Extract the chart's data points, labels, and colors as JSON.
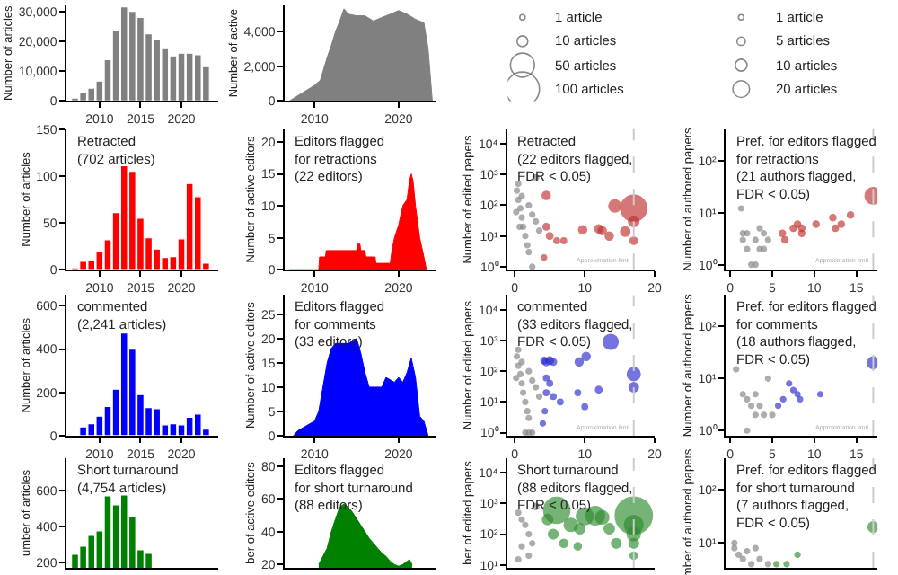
{
  "chart_data": [
    {
      "type": "bar",
      "ylabel": "Number of articles",
      "x": [
        2007,
        2008,
        2009,
        2010,
        2011,
        2012,
        2013,
        2014,
        2015,
        2016,
        2017,
        2018,
        2019,
        2020,
        2021,
        2022,
        2023
      ],
      "values": [
        1000,
        2700,
        4300,
        6700,
        13800,
        23500,
        31500,
        30000,
        28000,
        22500,
        20500,
        17800,
        15100,
        16000,
        16000,
        15500,
        11500
      ],
      "color": "#808080",
      "xlim": [
        2006,
        2024.5
      ],
      "xticks": [
        2010,
        2015,
        2020
      ],
      "ylim": [
        0,
        32000
      ],
      "yticks": [
        0,
        {
          "value": 10000,
          "label": "10,000"
        },
        {
          "value": 20000,
          "label": "20,000"
        },
        {
          "value": 30000,
          "label": "30,000"
        }
      ]
    },
    {
      "type": "area",
      "ylabel": "Number of active",
      "x": [
        2007,
        2008,
        2009,
        2010,
        2010.7,
        2011,
        2011.5,
        2012,
        2012.5,
        2013,
        2013.5,
        2014,
        2015,
        2016,
        2017,
        2018,
        2019,
        2020,
        2021,
        2022,
        2023,
        2023.5,
        2024
      ],
      "values": [
        0,
        300,
        600,
        900,
        1200,
        1700,
        2500,
        3200,
        4000,
        4600,
        5300,
        5000,
        4900,
        4900,
        4600,
        4800,
        5000,
        5200,
        5000,
        4700,
        4500,
        3000,
        0
      ],
      "color": "#808080",
      "xlim": [
        2006.5,
        2024.5
      ],
      "xticks": [
        2010,
        2020
      ],
      "ylim": [
        0,
        5500
      ],
      "yticks": [
        0,
        {
          "value": 2000,
          "label": "2,000"
        },
        {
          "value": 4000,
          "label": "4,000"
        }
      ]
    },
    {
      "type": "bar",
      "title": "Retracted\n(702 articles)",
      "ylabel": "Number of articles",
      "x": [
        2007,
        2008,
        2009,
        2010,
        2011,
        2012,
        2013,
        2014,
        2015,
        2016,
        2017,
        2018,
        2019,
        2020,
        2021,
        2022,
        2023
      ],
      "values": [
        2,
        9,
        10,
        20,
        32,
        61,
        111,
        105,
        55,
        34,
        22,
        13,
        14,
        33,
        92,
        78,
        7
      ],
      "color": "#ff0000",
      "xlim": [
        2006,
        2024.5
      ],
      "xticks": [
        2010,
        2015,
        2020
      ],
      "ylim": [
        0,
        150
      ],
      "yticks": [
        0,
        50,
        100,
        150
      ]
    },
    {
      "type": "area",
      "title": "Editors flagged\nfor retractions\n(22 editors)",
      "ylabel": "Number of active editors",
      "x": [
        2007,
        2010.5,
        2010.6,
        2011.3,
        2011.4,
        2015,
        2015.1,
        2015.4,
        2015.5,
        2016,
        2016.1,
        2017.2,
        2017.3,
        2019,
        2019.2,
        2019.5,
        2020,
        2020.5,
        2021,
        2021.3,
        2021.5,
        2021.7,
        2022,
        2022.5,
        2023,
        2023.3
      ],
      "values": [
        0,
        0,
        2,
        2,
        3,
        3,
        4,
        4,
        3,
        3,
        2,
        2,
        1,
        1,
        3,
        5,
        7,
        10,
        11,
        14,
        15,
        14,
        10,
        5,
        2,
        0
      ],
      "color": "#ff0000",
      "xlim": [
        2006.5,
        2024.5
      ],
      "xticks": [
        2010,
        2020
      ],
      "ylim": [
        0,
        22
      ],
      "yticks": [
        0,
        5,
        10,
        15,
        20
      ]
    },
    {
      "type": "bubble",
      "title": "Retracted\n(22 editors flagged,\nFDR < 0.05)",
      "ylabel": "Number of edited papers",
      "log": "y",
      "xlim": [
        -1,
        20
      ],
      "xticks": [
        0,
        10,
        20
      ],
      "ylim": [
        0.8,
        30000
      ],
      "yticks": [
        {
          "value": 1,
          "label": "10⁰"
        },
        {
          "value": 10,
          "label": "10¹"
        },
        {
          "value": 100,
          "label": "10²"
        },
        {
          "value": 1000,
          "label": "10³"
        },
        {
          "value": 10000,
          "label": "10⁴"
        }
      ],
      "size_legend": [
        {
          "value": 1,
          "label": "1 article"
        },
        {
          "value": 10,
          "label": "10 articles"
        },
        {
          "value": 50,
          "label": "50 articles"
        },
        {
          "value": 100,
          "label": "100 articles"
        }
      ],
      "ref_lines": [
        {
          "axis": "x",
          "value": 17,
          "label": "Approximation limit",
          "color": "#cccccc",
          "line_style": "dashed"
        }
      ],
      "series": [
        {
          "color": "#808080",
          "x": [
            0.3,
            0.5,
            0.8,
            1,
            1.2,
            1.5,
            1.8,
            2,
            2.5,
            0.5,
            1,
            2,
            2.5,
            3,
            3,
            3.5,
            0.2,
            0.7
          ],
          "values": [
            300,
            150,
            80,
            40,
            20,
            10,
            5,
            3,
            1,
            500,
            200,
            100,
            50,
            30,
            800,
            15,
            60,
            20
          ],
          "sizes": [
            1,
            2,
            1,
            2,
            1,
            1,
            1,
            1,
            2,
            2,
            1,
            2,
            1,
            1,
            3,
            1,
            1,
            1
          ]
        },
        {
          "color": "#c0302f",
          "x": [
            4.5,
            4.5,
            5,
            6,
            7,
            9.7,
            12,
            12.5,
            13.5,
            14.3,
            15.8,
            17,
            17,
            17,
            4.2
          ],
          "values": [
            210,
            20,
            10,
            7,
            7,
            16,
            17,
            15,
            10,
            95,
            14,
            80,
            30,
            7,
            2
          ],
          "sizes": [
            6,
            4,
            4,
            3,
            3,
            6,
            6,
            6,
            6,
            13,
            8,
            60,
            10,
            5,
            1
          ]
        }
      ]
    },
    {
      "type": "bubble",
      "title": "Pref. for editors flagged\nfor retractions\n(21 authors flagged,\nFDR < 0.05)",
      "ylabel": "Number of authored papers",
      "log": "y",
      "xlim": [
        -0.5,
        17.5
      ],
      "xticks": [
        0,
        5,
        10,
        15
      ],
      "ylim": [
        0.8,
        400
      ],
      "yticks": [
        {
          "value": 1,
          "label": "10⁰"
        },
        {
          "value": 10,
          "label": "10¹"
        },
        {
          "value": 100,
          "label": "10²"
        }
      ],
      "size_legend": [
        {
          "value": 1,
          "label": "1 article"
        },
        {
          "value": 5,
          "label": "5 articles"
        },
        {
          "value": 10,
          "label": "10 articles"
        },
        {
          "value": 20,
          "label": "20 articles"
        }
      ],
      "ref_lines": [
        {
          "axis": "x",
          "value": 17,
          "label": "Approximation limit",
          "color": "#cccccc",
          "line_style": "dashed"
        }
      ],
      "series": [
        {
          "color": "#808080",
          "x": [
            1.3,
            1.5,
            1.5,
            2,
            2.5,
            3,
            2,
            3,
            3.5,
            4,
            4.5,
            3.5,
            4
          ],
          "values": [
            12,
            4,
            3,
            2,
            1,
            1,
            4,
            3,
            2,
            2,
            3,
            5,
            4
          ],
          "sizes": [
            1,
            1,
            1,
            1,
            1,
            1,
            2,
            1,
            1,
            1,
            1,
            1,
            1
          ]
        },
        {
          "color": "#c0302f",
          "x": [
            6.2,
            6.5,
            7.5,
            8,
            8.5,
            8.5,
            10.2,
            12.2,
            12.5,
            13.2,
            14.3,
            17
          ],
          "values": [
            4,
            3,
            5,
            6,
            5,
            4,
            6,
            8,
            5,
            6,
            9,
            21
          ],
          "sizes": [
            3,
            3,
            3,
            3,
            3,
            3,
            3,
            3,
            3,
            3,
            3,
            20
          ]
        }
      ]
    },
    {
      "type": "bar",
      "title": "commented\n(2,241 articles)",
      "ylabel": "Number of articles",
      "x": [
        2007,
        2008,
        2009,
        2010,
        2011,
        2012,
        2013,
        2014,
        2015,
        2016,
        2017,
        2018,
        2019,
        2020,
        2021,
        2022,
        2023
      ],
      "values": [
        5,
        40,
        55,
        90,
        135,
        215,
        475,
        400,
        190,
        130,
        125,
        50,
        55,
        50,
        85,
        100,
        30
      ],
      "color": "#0000ff",
      "xlim": [
        2006,
        2024.5
      ],
      "xticks": [
        2010,
        2015,
        2020
      ],
      "ylim": [
        0,
        650
      ],
      "yticks": [
        0,
        200,
        400,
        600
      ]
    },
    {
      "type": "area",
      "title": "Editors flagged\nfor comments\n(33 editors)",
      "ylabel": "Number of active editors",
      "x": [
        2007.5,
        2008,
        2009,
        2010,
        2010.5,
        2011,
        2011.5,
        2012,
        2012.5,
        2014,
        2015,
        2015.5,
        2016,
        2016.5,
        2018,
        2018.5,
        2019.5,
        2020,
        2020.5,
        2021,
        2021.5,
        2022,
        2022.5,
        2023,
        2023.5
      ],
      "values": [
        0,
        1,
        2,
        3,
        5,
        10,
        15,
        18,
        19,
        19,
        20,
        17,
        13,
        10,
        10,
        12,
        11,
        12,
        11,
        13,
        16,
        12,
        4,
        3,
        0
      ],
      "color": "#0000ff",
      "xlim": [
        2006.5,
        2024.5
      ],
      "xticks": [
        2010,
        2020
      ],
      "ylim": [
        0,
        29
      ],
      "yticks": [
        0,
        5,
        10,
        15,
        20,
        25
      ]
    },
    {
      "type": "bubble",
      "title": "commented\n(33 editors flagged,\nFDR < 0.05)",
      "ylabel": "Number of edited papers",
      "log": "y",
      "xlim": [
        -1,
        20
      ],
      "xticks": [
        0,
        10,
        20
      ],
      "ylim": [
        0.8,
        30000
      ],
      "yticks": [
        {
          "value": 1,
          "label": "10⁰"
        },
        {
          "value": 10,
          "label": "10¹"
        },
        {
          "value": 100,
          "label": "10²"
        },
        {
          "value": 1000,
          "label": "10³"
        },
        {
          "value": 10000,
          "label": "10⁴"
        }
      ],
      "ref_lines": [
        {
          "axis": "x",
          "value": 17,
          "label": "Approximation limit",
          "color": "#cccccc",
          "line_style": "dashed"
        }
      ],
      "series": [
        {
          "color": "#808080",
          "x": [
            0.3,
            0.5,
            0.8,
            1,
            1.2,
            1.5,
            1.8,
            2,
            2.5,
            0.5,
            1,
            2,
            2.5,
            3,
            3.5,
            0.2,
            1.5,
            2
          ],
          "values": [
            300,
            150,
            80,
            40,
            20,
            10,
            5,
            3,
            1,
            500,
            200,
            100,
            50,
            30,
            15,
            60,
            1,
            1
          ],
          "sizes": [
            0.05,
            0.1,
            0.05,
            0.1,
            0.05,
            0.05,
            0.05,
            0.05,
            0.1,
            0.1,
            0.05,
            0.1,
            0.05,
            0.05,
            0.05,
            0.05,
            0.05,
            0.05
          ]
        },
        {
          "color": "#2a2ad0",
          "x": [
            4.2,
            4.5,
            5,
            5.5,
            4.5,
            5,
            4.5,
            5.5,
            6.5,
            9.2,
            10.2,
            13.7,
            9,
            10,
            12,
            17,
            17,
            4,
            4.3
          ],
          "values": [
            220,
            200,
            220,
            200,
            60,
            40,
            20,
            15,
            10,
            200,
            300,
            900,
            20,
            7,
            25,
            80,
            30,
            2,
            5
          ],
          "sizes": [
            0.2,
            0.25,
            0.25,
            0.2,
            0.15,
            0.15,
            0.15,
            0.15,
            0.15,
            0.3,
            0.3,
            1,
            0.15,
            0.15,
            0.2,
            0.75,
            0.4,
            0.05,
            0.1
          ]
        }
      ]
    },
    {
      "type": "bubble",
      "title": "Pref. for editors flagged\nfor comments\n(18 authors flagged,\nFDR < 0.05)",
      "ylabel": "Number of authored papers",
      "log": "y",
      "xlim": [
        -0.5,
        17.5
      ],
      "xticks": [
        0,
        5,
        10,
        15
      ],
      "ylim": [
        0.8,
        400
      ],
      "yticks": [
        {
          "value": 1,
          "label": "10⁰"
        },
        {
          "value": 10,
          "label": "10¹"
        },
        {
          "value": 100,
          "label": "10²"
        }
      ],
      "ref_lines": [
        {
          "axis": "x",
          "value": 17,
          "label": "Approximation limit",
          "color": "#cccccc",
          "line_style": "dashed"
        }
      ],
      "series": [
        {
          "color": "#808080",
          "x": [
            0.7,
            1.5,
            2,
            2.5,
            3,
            2,
            3,
            3.5,
            4,
            4.5,
            5
          ],
          "values": [
            15,
            5,
            4,
            3,
            2,
            1,
            5,
            3,
            2,
            10,
            2
          ],
          "sizes": [
            0.1,
            0.1,
            0.1,
            0.1,
            0.1,
            0.1,
            0.1,
            0.1,
            0.1,
            0.1,
            0.1
          ]
        },
        {
          "color": "#2a2ad0",
          "x": [
            17,
            7,
            7.5,
            8,
            8.3,
            6.3,
            5.7,
            10.7
          ],
          "values": [
            20,
            8,
            6,
            5,
            4,
            4,
            3,
            5
          ],
          "sizes": [
            1,
            0.2,
            0.2,
            0.2,
            0.2,
            0.2,
            0.2,
            0.2
          ]
        }
      ]
    },
    {
      "type": "bar",
      "title": "Short turnaround\n(4,754 articles)",
      "ylabel": "umber of articles",
      "tick_labels": "y",
      "x": [
        2007,
        2008,
        2009,
        2010,
        2011,
        2012,
        2013,
        2014,
        2015,
        2016
      ],
      "values": [
        245,
        290,
        350,
        375,
        570,
        520,
        575,
        455,
        270,
        250
      ],
      "color": "#008000",
      "xlim": [
        2006,
        2024.5
      ],
      "ylim": [
        170,
        780
      ],
      "yticks": [
        200,
        400,
        600
      ]
    },
    {
      "type": "area",
      "title": "Editors flagged\nfor short turnaround\n(88 editors)",
      "ylabel": "ber of active editors",
      "tick_labels": "y",
      "x": [
        2010.5,
        2011,
        2011.5,
        2012,
        2012.5,
        2013,
        2013.5,
        2014,
        2014.5,
        2015,
        2015.5,
        2016,
        2016.5,
        2017,
        2017.5,
        2018,
        2018.5,
        2019,
        2019.5,
        2020,
        2020.5,
        2021,
        2021.3,
        2021.6
      ],
      "values": [
        20,
        25,
        30,
        40,
        48,
        55,
        57,
        55,
        52,
        48,
        44,
        40,
        36,
        33,
        30,
        27,
        25,
        22,
        20,
        19,
        20,
        22,
        23,
        20
      ],
      "color": "#008000",
      "xlim": [
        2006.5,
        2024.5
      ],
      "ylim": [
        18,
        85
      ],
      "yticks": [
        20,
        40,
        60,
        80
      ]
    },
    {
      "type": "bubble",
      "title": "Short turnaround\n(88 editors flagged,\nFDR < 0.05)",
      "ylabel": "ber of edited papers",
      "log": "y",
      "tick_labels": "y",
      "xlim": [
        -1,
        20
      ],
      "ylim": [
        8,
        30000
      ],
      "yticks": [
        {
          "value": 10,
          "label": "10¹"
        },
        {
          "value": 100,
          "label": "10²"
        },
        {
          "value": 1000,
          "label": "10³"
        },
        {
          "value": 10000,
          "label": "10⁴"
        }
      ],
      "ref_lines": [
        {
          "axis": "x",
          "value": 17,
          "color": "#cccccc",
          "line_style": "dashed"
        }
      ],
      "series": [
        {
          "color": "#808080",
          "x": [
            0.5,
            1,
            1.5,
            2,
            2.5,
            3,
            1,
            2,
            0.5
          ],
          "values": [
            500,
            300,
            200,
            100,
            50,
            800,
            40,
            20,
            15
          ],
          "sizes": [
            0.02,
            0.02,
            0.02,
            0.02,
            0.01,
            0.03,
            0.01,
            0.01,
            0.01
          ]
        },
        {
          "color": "#2e8b2e",
          "x": [
            6,
            4.7,
            8,
            9.3,
            10,
            11.5,
            12.5,
            13.5,
            14.5,
            17,
            17,
            17,
            17,
            17,
            5.5,
            7,
            9
          ],
          "values": [
            600,
            300,
            200,
            150,
            380,
            400,
            350,
            150,
            50,
            400,
            200,
            100,
            50,
            20,
            100,
            50,
            40
          ],
          "sizes": [
            0.5,
            0.08,
            0.13,
            0.08,
            0.21,
            0.25,
            0.13,
            0.08,
            0.07,
            1,
            0.25,
            0.13,
            0.07,
            0.04,
            0.07,
            0.05,
            0.04
          ]
        }
      ]
    },
    {
      "type": "bubble",
      "title": "Pref. for editors flagged\nfor short turnaround\n(7 authors flagged,\nFDR < 0.05)",
      "ylabel": "mber of authored papers",
      "log": "y",
      "tick_labels": "y",
      "xlim": [
        -0.5,
        17.5
      ],
      "ylim": [
        3.4,
        400
      ],
      "yticks": [
        {
          "value": 10,
          "label": "10¹"
        },
        {
          "value": 100,
          "label": "10²"
        }
      ],
      "ref_lines": [
        {
          "axis": "x",
          "value": 17,
          "color": "#cccccc",
          "line_style": "dashed"
        }
      ],
      "series": [
        {
          "color": "#808080",
          "x": [
            0.5,
            0.5,
            1,
            1.5,
            2,
            2.5,
            3,
            3.5,
            4.5
          ],
          "values": [
            10,
            8,
            6,
            5,
            7,
            4,
            8,
            5,
            4
          ],
          "sizes": [
            0.13,
            0.13,
            0.13,
            0.13,
            0.13,
            0.13,
            0.13,
            0.13,
            0.13
          ]
        },
        {
          "color": "#2e8b2e",
          "x": [
            17,
            8,
            6.7,
            5.5
          ],
          "values": [
            20,
            6,
            4,
            4
          ],
          "sizes": [
            1,
            0.25,
            0.25,
            0.13
          ]
        }
      ]
    }
  ]
}
